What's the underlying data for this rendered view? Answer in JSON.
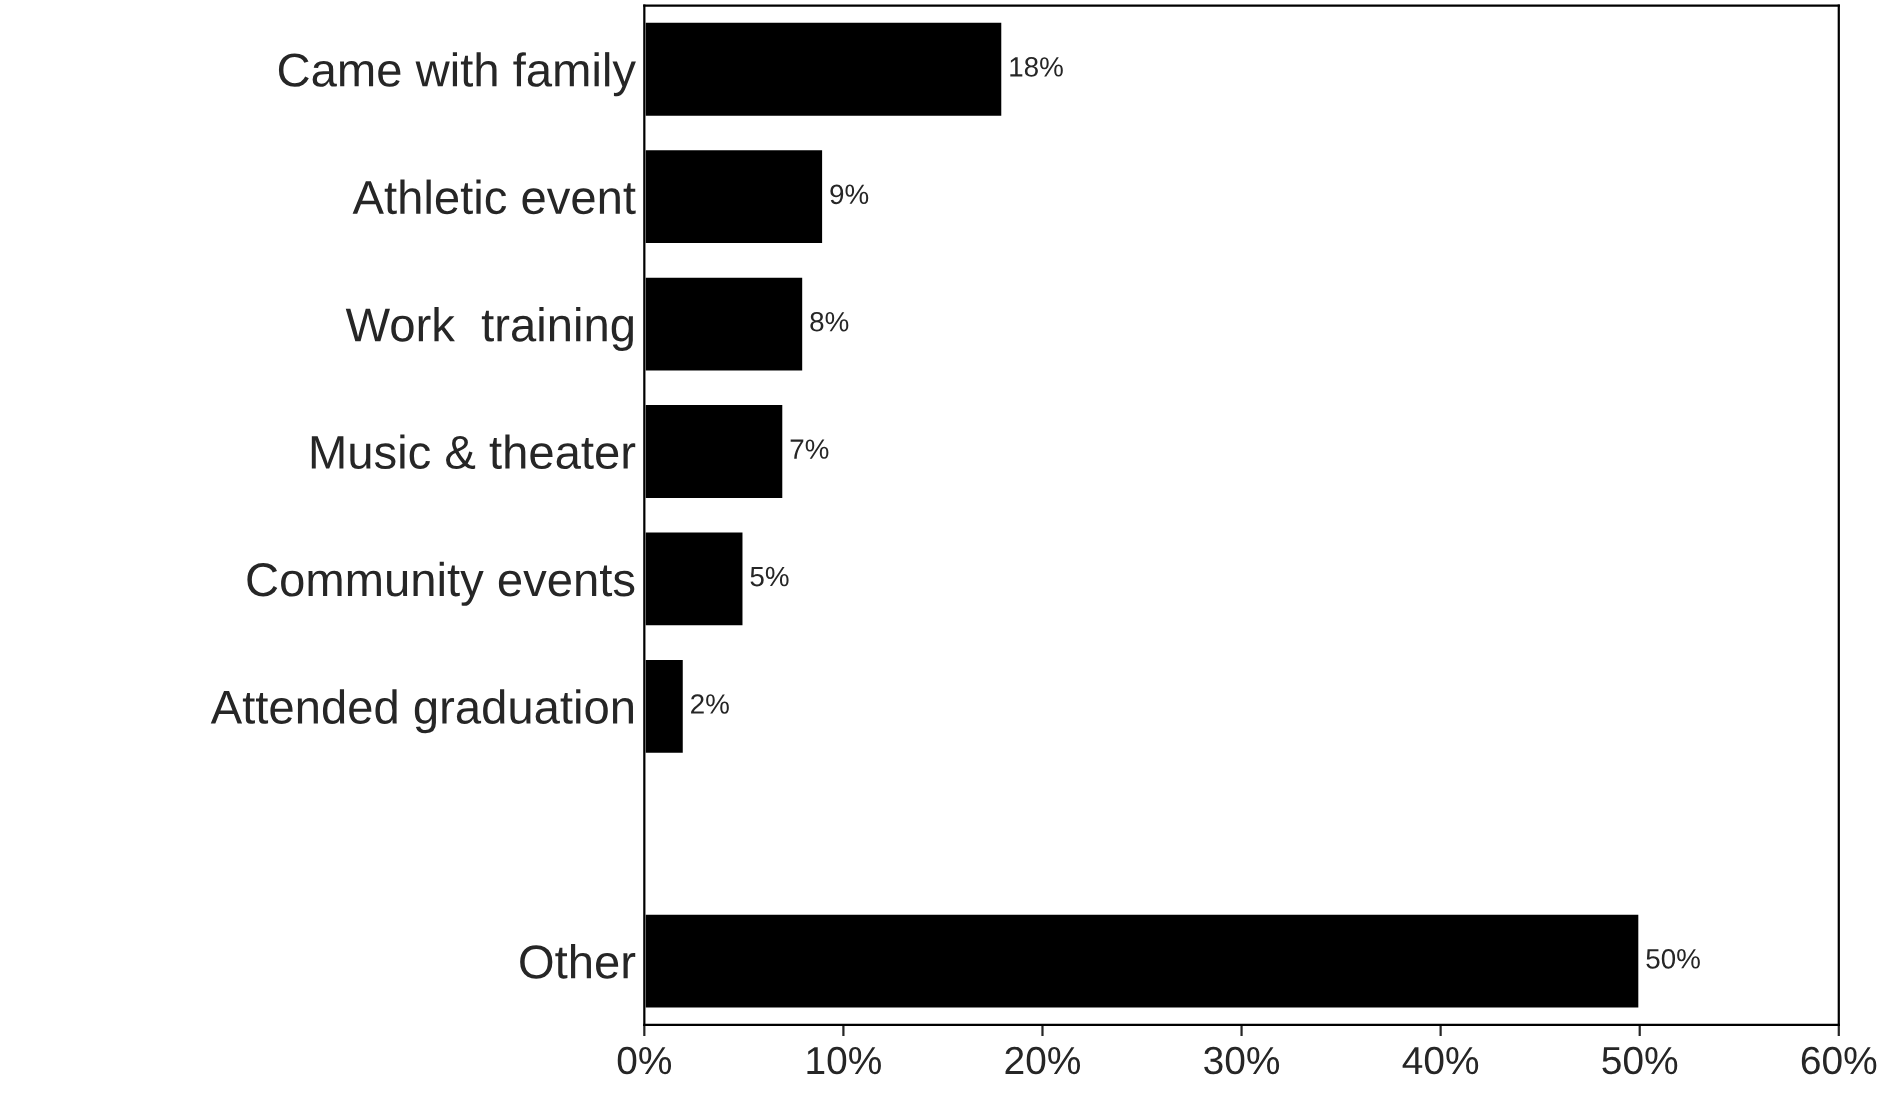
{
  "chart_data": {
    "type": "bar",
    "orientation": "horizontal",
    "categories": [
      "Came with family",
      "Athletic event",
      "Work  training",
      "Music & theater",
      "Community events",
      "Attended graduation",
      null,
      "Other"
    ],
    "values": [
      18,
      9,
      8,
      7,
      5,
      2,
      null,
      50
    ],
    "value_labels": [
      "18%",
      "9%",
      "8%",
      "7%",
      "5%",
      "2%",
      null,
      "50%"
    ],
    "color": "#000000",
    "xlim": [
      0,
      60
    ],
    "xticks": [
      {
        "value": 0,
        "label": "0%"
      },
      {
        "value": 10,
        "label": "10%"
      },
      {
        "value": 20,
        "label": "20%"
      },
      {
        "value": 30,
        "label": "30%"
      },
      {
        "value": 40,
        "label": "40%"
      },
      {
        "value": 50,
        "label": "50%"
      },
      {
        "value": 60,
        "label": "60%"
      }
    ],
    "grid": false,
    "legend": false
  }
}
